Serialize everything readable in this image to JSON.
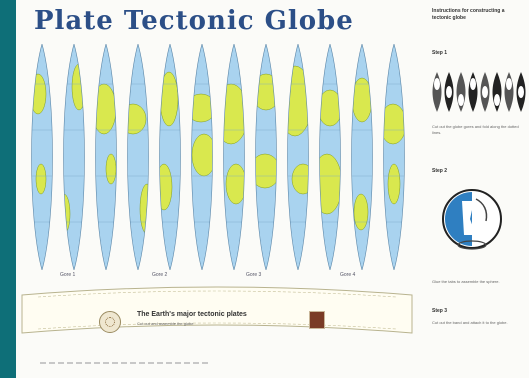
{
  "title": "Plate Tectonic Globe",
  "gore_labels": [
    "Gore 1",
    "Gore 2",
    "Gore 3",
    "Gore 4"
  ],
  "band": {
    "title": "The Earth's major tectonic plates",
    "subtitle": "Cut out and assemble the globe"
  },
  "sidebar": {
    "intro": "Instructions for constructing a tectonic globe",
    "steps": [
      {
        "label": "Step 1",
        "text": "Cut out the globe gores and fold along the dotted lines."
      },
      {
        "label": "Step 2",
        "text": "Glue the tabs to assemble the sphere."
      },
      {
        "label": "Step 3",
        "text": "Cut out the band and attach it to the globe."
      }
    ]
  },
  "colors": {
    "ocean": "#a9d3ef",
    "land": "#d9e84e",
    "title": "#2c4f87",
    "edge_bar": "#0e6f78"
  }
}
